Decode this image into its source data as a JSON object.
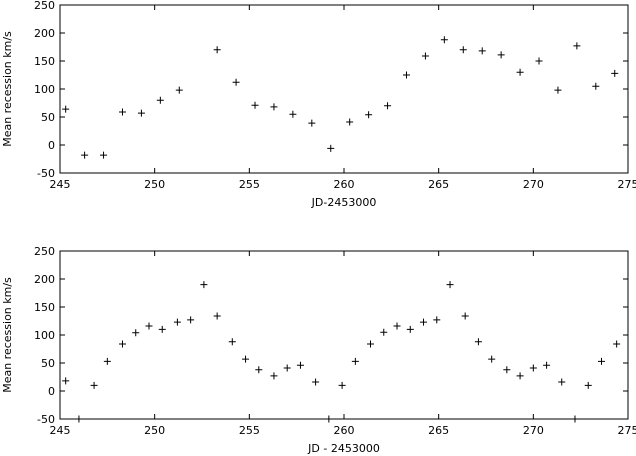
{
  "chart_data": [
    {
      "type": "scatter",
      "xlabel": "JD-2453000",
      "ylabel": "Mean recession km/s",
      "color": "#000000",
      "xlim": [
        245,
        275
      ],
      "ylim": [
        -50,
        250
      ],
      "xticks": [
        245,
        250,
        255,
        260,
        265,
        270,
        275
      ],
      "yticks": [
        -50,
        0,
        50,
        100,
        150,
        200,
        250
      ],
      "x": [
        245.3,
        246.3,
        247.3,
        248.3,
        249.3,
        250.3,
        251.3,
        253.3,
        254.3,
        255.3,
        256.3,
        257.3,
        258.3,
        259.3,
        260.3,
        261.3,
        262.3,
        263.3,
        264.3,
        265.3,
        266.3,
        267.3,
        268.3,
        269.3,
        270.3,
        271.3,
        272.3,
        273.3,
        274.3
      ],
      "values": [
        64,
        -18,
        -18,
        59,
        57,
        80,
        98,
        170,
        112,
        71,
        68,
        55,
        39,
        -6,
        41,
        54,
        70,
        125,
        159,
        188,
        170,
        168,
        161,
        130,
        150,
        98,
        177,
        105,
        128
      ]
    },
    {
      "type": "scatter",
      "xlabel": "JD - 2453000",
      "ylabel": "Mean recession km/s",
      "color": "#000000",
      "xlim": [
        245,
        275
      ],
      "ylim": [
        -50,
        250
      ],
      "xticks": [
        245,
        250,
        255,
        260,
        265,
        270,
        275
      ],
      "yticks": [
        -50,
        0,
        50,
        100,
        150,
        200,
        250
      ],
      "x": [
        245.3,
        246.0,
        246.8,
        247.5,
        248.3,
        249.0,
        249.7,
        250.4,
        251.2,
        251.9,
        252.6,
        253.3,
        254.1,
        254.8,
        255.5,
        256.3,
        257.0,
        257.7,
        258.5,
        259.2,
        259.9,
        260.6,
        261.4,
        262.1,
        262.8,
        263.5,
        264.2,
        264.9,
        265.6,
        266.4,
        267.1,
        267.8,
        268.6,
        269.3,
        270.0,
        270.7,
        271.5,
        272.2,
        272.9,
        273.6,
        274.4
      ],
      "values": [
        18,
        -50,
        10,
        53,
        84,
        104,
        116,
        110,
        123,
        127,
        190,
        134,
        88,
        57,
        38,
        27,
        41,
        46,
        16,
        -50,
        10,
        53,
        84,
        105,
        116,
        110,
        123,
        127,
        190,
        134,
        88,
        57,
        38,
        27,
        41,
        46,
        16,
        -50,
        10,
        53,
        84
      ]
    }
  ]
}
